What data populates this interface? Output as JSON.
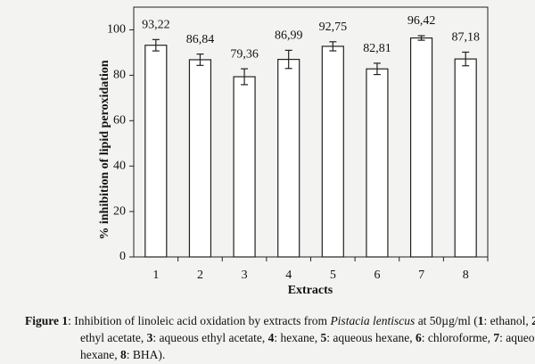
{
  "chart_data": {
    "type": "bar",
    "y_label": "% inhibition of lipid peroxidation",
    "x_label": "Extracts",
    "categories": [
      "1",
      "2",
      "3",
      "4",
      "5",
      "6",
      "7",
      "8"
    ],
    "values": [
      93.22,
      86.84,
      79.36,
      86.99,
      92.75,
      82.81,
      96.42,
      87.18
    ],
    "value_labels": [
      "93,22",
      "86,84",
      "79,36",
      "86,99",
      "92,75",
      "82,81",
      "96,42",
      "87,18"
    ],
    "errors": [
      2.5,
      2.5,
      3.5,
      4,
      2,
      2.5,
      1,
      3
    ],
    "color": "#ffffff",
    "ylim": [
      0,
      110
    ],
    "yticks": [
      0,
      20,
      40,
      60,
      80,
      100
    ],
    "grid": false,
    "caption": [
      "Figure 1",
      ": Inhibition of linoleic acid oxidation by extracts from ",
      "Pistacia lentiscus",
      " at 50µg/ml (",
      "1",
      ": ethanol, ",
      "2",
      ": ethyl acetate, ",
      "3",
      ": aqueous ethyl acetate, ",
      "4",
      ": hexane, ",
      "5",
      ": aqueous hexane, ",
      "6",
      ": chloroforme, ",
      "7",
      ": aqueous hexane, ",
      "8",
      ": BHA)."
    ]
  }
}
